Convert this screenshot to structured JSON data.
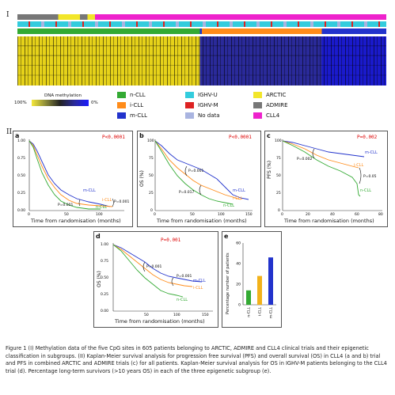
{
  "section_I": "I",
  "section_II": "II",
  "methylation_legend": {
    "title": "DNA methylation",
    "low": "100%",
    "high": "0%"
  },
  "legend": [
    {
      "label": "n-CLL",
      "color": "#33aa33"
    },
    {
      "label": "i-CLL",
      "color": "#ff8c1a"
    },
    {
      "label": "m-CLL",
      "color": "#2233cc"
    },
    {
      "label": "IGHV-U",
      "color": "#33ccdd"
    },
    {
      "label": "IGHV-M",
      "color": "#dd2222"
    },
    {
      "label": "No data",
      "color": "#a9b4e0"
    },
    {
      "label": "ARCTIC",
      "color": "#f2e62a"
    },
    {
      "label": "ADMIRE",
      "color": "#777777"
    },
    {
      "label": "CLL4",
      "color": "#ee22cc"
    }
  ],
  "panels": {
    "a": {
      "letter": "a",
      "pvalue": "P<0.0001",
      "xlabel": "Time from randomisation (months)",
      "ylabel": "",
      "pairs": [
        "P=0.001",
        "P=0.001"
      ],
      "series": [
        "m-CLL",
        "i-CLL",
        "n-CLL"
      ]
    },
    "b": {
      "letter": "b",
      "pvalue": "P<0.0001",
      "xlabel": "Time from randomisation (months)",
      "ylabel": "OS (%)",
      "pairs": [
        "P=0.001",
        "P=0.017"
      ],
      "series": [
        "m-CLL",
        "i-CLL",
        "n-CLL"
      ]
    },
    "c": {
      "letter": "c",
      "pvalue": "P=0.002",
      "xlabel": "Time from randomisation (months)",
      "ylabel": "PFS (%)",
      "pairs": [
        "P=0.002",
        "P=0.05"
      ],
      "series": [
        "m-CLL",
        "i-CLL",
        "n-CLL"
      ]
    },
    "d": {
      "letter": "d",
      "pvalue": "P=0.001",
      "xlabel": "Time from randomisation (months)",
      "ylabel": "OS (%)",
      "pairs": [
        "P=0.001",
        "P=0.001"
      ],
      "series": [
        "m-CLL",
        "i-CLL",
        "n-CLL"
      ]
    },
    "e": {
      "letter": "e",
      "ylabel": "Percentage number of patients"
    }
  },
  "chart_data": [
    {
      "type": "bar",
      "categories": [
        "n-CLL",
        "i-CLL",
        "m-CLL"
      ],
      "values": [
        14,
        28,
        46
      ],
      "ylim": [
        0,
        60
      ],
      "ylabel": "Percentage number of patients",
      "colors": [
        "#33aa33",
        "#f2b21a",
        "#2233cc"
      ]
    }
  ],
  "caption": "Figure 1 (I) Methylation data of the five CpG sites in 605 patients belonging to ARCTIC, ADMIRE and CLL4 clinical trials and their epigenetic classification in subgroups. (II) Kaplan-Meier survival analysis for progression free survival (PFS) and overall survival (OS) in CLL4 (a and b) trial and PFS in combined ARCTIC and ADMIRE trials (c) for all patients. Kaplan-Meier survival analysis for OS in IGHV-M patients belonging to the CLL4 trial (d). Percentage long-term survivors (>10 years OS) in each of the three epigenetic subgroup (e)."
}
